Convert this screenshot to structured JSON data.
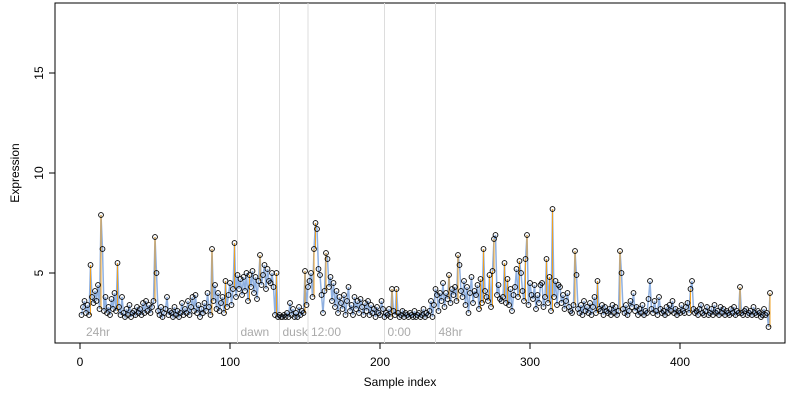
{
  "chart_data": {
    "type": "scatter",
    "x_label": "Sample index",
    "y_label": "Expression",
    "xlim": [
      -16.67,
      470
    ],
    "ylim": [
      1.5,
      18.5
    ],
    "xticks": [
      0,
      100,
      200,
      300,
      400
    ],
    "yticks": [
      5,
      10,
      15
    ],
    "point_color": "#000000",
    "line_color": "#8fb0e0",
    "jump_color": "#f0a020",
    "phases": [
      {
        "label": "24hr",
        "x": 2
      },
      {
        "label": "dawn",
        "x": 105
      },
      {
        "label": "dusk",
        "x": 133
      },
      {
        "label": "12:00",
        "x": 152
      },
      {
        "label": "0:00",
        "x": 203
      },
      {
        "label": "48hr",
        "x": 237
      }
    ],
    "values": [
      2.9,
      3.3,
      3.6,
      3.0,
      3.4,
      2.9,
      5.4,
      3.8,
      3.5,
      4.1,
      3.6,
      4.4,
      3.2,
      7.9,
      6.2,
      3.1,
      3.8,
      3.0,
      3.3,
      2.9,
      3.7,
      3.2,
      4.0,
      3.1,
      5.5,
      3.3,
      2.9,
      3.8,
      3.0,
      2.8,
      3.2,
      2.9,
      3.4,
      2.8,
      3.0,
      3.1,
      2.9,
      3.3,
      3.0,
      3.2,
      2.9,
      3.5,
      3.0,
      3.6,
      3.1,
      3.4,
      3.0,
      3.3,
      3.6,
      6.8,
      5.0,
      3.1,
      2.9,
      3.3,
      2.8,
      3.0,
      3.2,
      3.8,
      2.9,
      3.1,
      3.0,
      2.8,
      3.3,
      2.9,
      3.1,
      2.8,
      3.0,
      3.5,
      2.9,
      3.2,
      3.0,
      3.6,
      2.9,
      3.3,
      3.8,
      3.1,
      3.9,
      3.0,
      3.4,
      2.8,
      3.2,
      3.0,
      3.5,
      3.1,
      4.0,
      3.3,
      2.9,
      6.2,
      3.6,
      4.4,
      3.2,
      4.0,
      3.1,
      3.5,
      3.8,
      3.0,
      4.6,
      3.3,
      3.9,
      4.5,
      3.4,
      4.2,
      6.5,
      3.8,
      4.9,
      4.2,
      4.7,
      3.9,
      4.8,
      4.1,
      5.0,
      3.6,
      4.9,
      4.3,
      5.1,
      4.0,
      4.8,
      3.7,
      4.6,
      5.9,
      4.4,
      4.9,
      5.4,
      4.2,
      5.2,
      4.6,
      4.5,
      5.0,
      4.3,
      2.9,
      5.0,
      2.8,
      2.9,
      2.8,
      2.8,
      2.9,
      2.8,
      3.0,
      2.8,
      3.5,
      2.9,
      3.2,
      2.8,
      3.0,
      2.8,
      3.3,
      2.9,
      3.1,
      3.0,
      5.1,
      3.4,
      4.3,
      4.6,
      5.0,
      3.8,
      6.2,
      7.5,
      7.2,
      5.2,
      4.9,
      3.9,
      3.0,
      4.1,
      6.0,
      5.7,
      4.3,
      4.8,
      3.6,
      4.5,
      3.3,
      4.1,
      3.0,
      3.8,
      3.5,
      3.2,
      3.9,
      2.9,
      3.6,
      4.3,
      3.1,
      3.4,
      2.9,
      3.8,
      3.2,
      3.6,
      3.0,
      3.7,
      3.3,
      2.9,
      3.5,
      3.1,
      3.6,
      2.9,
      3.4,
      3.0,
      3.2,
      2.8,
      3.3,
      3.0,
      2.9,
      3.6,
      3.2,
      2.8,
      3.0,
      2.9,
      3.2,
      2.8,
      4.2,
      3.1,
      2.9,
      4.2,
      3.0,
      2.8,
      2.9,
      3.1,
      2.8,
      3.0,
      2.9,
      2.8,
      3.0,
      2.9,
      2.8,
      3.1,
      2.8,
      2.9,
      3.0,
      2.8,
      2.9,
      3.2,
      2.8,
      3.0,
      2.9,
      3.1,
      3.6,
      2.8,
      3.4,
      4.2,
      3.9,
      3.1,
      4.0,
      3.6,
      4.5,
      3.3,
      4.0,
      3.7,
      4.9,
      3.5,
      4.2,
      3.9,
      4.3,
      3.6,
      5.9,
      5.4,
      4.1,
      3.8,
      4.6,
      3.4,
      4.3,
      3.0,
      4.0,
      4.8,
      3.5,
      4.1,
      3.9,
      4.4,
      3.2,
      4.7,
      3.5,
      6.2,
      4.1,
      3.8,
      3.6,
      4.9,
      3.3,
      5.1,
      6.7,
      6.9,
      3.9,
      4.4,
      3.7,
      3.6,
      3.8,
      5.5,
      3.5,
      4.7,
      3.4,
      4.2,
      3.1,
      3.9,
      4.3,
      5.2,
      3.8,
      5.6,
      5.0,
      4.1,
      3.6,
      5.7,
      6.9,
      3.4,
      4.5,
      3.9,
      3.7,
      4.4,
      3.2,
      3.9,
      3.5,
      4.4,
      4.5,
      3.3,
      3.8,
      5.7,
      3.5,
      4.8,
      3.1,
      8.2,
      3.8,
      4.6,
      3.4,
      4.4,
      4.3,
      3.5,
      3.9,
      3.2,
      3.6,
      4.0,
      3.3,
      3.1,
      3.0,
      3.4,
      6.1,
      4.9,
      3.2,
      3.0,
      3.4,
      2.9,
      3.6,
      3.1,
      3.3,
      3.0,
      3.5,
      2.9,
      3.3,
      3.8,
      3.0,
      4.6,
      3.2,
      3.1,
      3.4,
      2.9,
      3.3,
      3.1,
      3.0,
      3.2,
      2.9,
      3.4,
      3.0,
      3.3,
      2.9,
      3.1,
      6.1,
      5.0,
      3.2,
      3.0,
      3.4,
      2.9,
      3.1,
      3.6,
      3.3,
      4.0,
      3.1,
      3.3,
      2.9,
      3.2,
      3.0,
      3.4,
      2.9,
      3.1,
      3.0,
      3.7,
      4.6,
      3.2,
      3.0,
      3.6,
      3.1,
      2.9,
      3.8,
      3.2,
      3.0,
      3.1,
      2.9,
      3.3,
      3.0,
      3.4,
      3.1,
      3.6,
      3.0,
      3.2,
      2.9,
      3.1,
      3.0,
      3.4,
      3.1,
      3.0,
      3.3,
      3.5,
      3.0,
      4.2,
      4.6,
      3.2,
      3.0,
      3.1,
      2.9,
      3.2,
      3.4,
      3.0,
      2.9,
      3.1,
      3.3,
      2.9,
      3.0,
      3.2,
      2.9,
      3.4,
      3.0,
      3.1,
      2.9,
      3.3,
      3.0,
      3.2,
      2.9,
      3.1,
      3.0,
      2.9,
      3.2,
      3.0,
      3.3,
      2.9,
      3.1,
      3.0,
      4.3,
      3.0,
      2.9,
      3.1,
      3.2,
      2.9,
      3.0,
      3.1,
      2.9,
      3.3,
      3.0,
      2.9,
      3.1,
      3.0,
      2.8,
      2.9,
      3.2,
      2.9,
      3.0,
      2.3,
      4.0
    ]
  }
}
